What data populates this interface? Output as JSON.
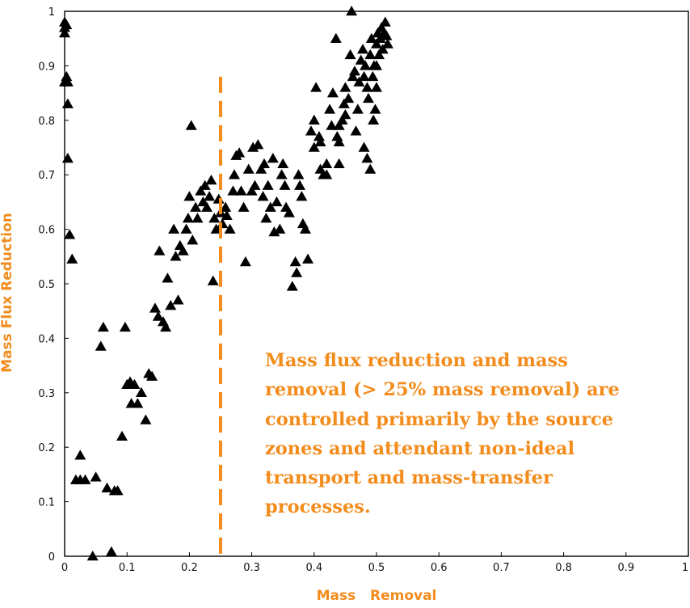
{
  "chart_data": {
    "type": "scatter",
    "title": "",
    "xlabel": "Mass   Removal",
    "ylabel": "Mass Flux Reduction",
    "xlim": [
      0,
      1
    ],
    "ylim": [
      0,
      1
    ],
    "xticks": [
      "0",
      "0.1",
      "0.2",
      "0.3",
      "0.4",
      "0.5",
      "0.6",
      "0.7",
      "0.8",
      "0.9",
      "1"
    ],
    "yticks": [
      "0",
      "0.1",
      "0.2",
      "0.3",
      "0.4",
      "0.5",
      "0.6",
      "0.7",
      "0.8",
      "0.9",
      "1"
    ],
    "grid": false,
    "marker": "triangle",
    "marker_color": "#000000",
    "threshold_line": {
      "x": 0.25,
      "y_range": [
        0,
        0.88
      ],
      "style": "dashed",
      "color": "#f28c1c"
    },
    "annotation": {
      "color": "#f28c1c",
      "lines": [
        "Mass flux reduction and mass",
        "removal (> 25% mass removal) are",
        "controlled primarily by the source",
        "zones and attendant non-ideal",
        "transport and mass-transfer",
        "processes."
      ]
    },
    "series": [
      {
        "points": [
          [
            0.0,
            0.98
          ],
          [
            0.0,
            0.97
          ],
          [
            0.0,
            0.96
          ],
          [
            0.003,
            0.975
          ],
          [
            0.003,
            0.88
          ],
          [
            0.0,
            0.87
          ],
          [
            0.005,
            0.87
          ],
          [
            0.005,
            0.83
          ],
          [
            0.005,
            0.73
          ],
          [
            0.008,
            0.59
          ],
          [
            0.012,
            0.545
          ],
          [
            0.045,
            0.0
          ],
          [
            0.075,
            0.008
          ],
          [
            0.018,
            0.14
          ],
          [
            0.025,
            0.14
          ],
          [
            0.033,
            0.14
          ],
          [
            0.025,
            0.185
          ],
          [
            0.05,
            0.145
          ],
          [
            0.068,
            0.125
          ],
          [
            0.08,
            0.12
          ],
          [
            0.085,
            0.12
          ],
          [
            0.058,
            0.385
          ],
          [
            0.062,
            0.42
          ],
          [
            0.092,
            0.22
          ],
          [
            0.097,
            0.42
          ],
          [
            0.1,
            0.315
          ],
          [
            0.105,
            0.32
          ],
          [
            0.107,
            0.28
          ],
          [
            0.112,
            0.315
          ],
          [
            0.117,
            0.28
          ],
          [
            0.123,
            0.3
          ],
          [
            0.13,
            0.25
          ],
          [
            0.135,
            0.335
          ],
          [
            0.14,
            0.33
          ],
          [
            0.145,
            0.455
          ],
          [
            0.15,
            0.44
          ],
          [
            0.152,
            0.56
          ],
          [
            0.158,
            0.43
          ],
          [
            0.162,
            0.42
          ],
          [
            0.165,
            0.51
          ],
          [
            0.17,
            0.46
          ],
          [
            0.175,
            0.6
          ],
          [
            0.178,
            0.55
          ],
          [
            0.182,
            0.47
          ],
          [
            0.185,
            0.57
          ],
          [
            0.19,
            0.56
          ],
          [
            0.195,
            0.6
          ],
          [
            0.198,
            0.62
          ],
          [
            0.2,
            0.66
          ],
          [
            0.203,
            0.79
          ],
          [
            0.205,
            0.58
          ],
          [
            0.21,
            0.64
          ],
          [
            0.213,
            0.62
          ],
          [
            0.218,
            0.67
          ],
          [
            0.222,
            0.65
          ],
          [
            0.225,
            0.68
          ],
          [
            0.228,
            0.64
          ],
          [
            0.232,
            0.66
          ],
          [
            0.235,
            0.69
          ],
          [
            0.238,
            0.505
          ],
          [
            0.24,
            0.62
          ],
          [
            0.243,
            0.6
          ],
          [
            0.247,
            0.655
          ],
          [
            0.25,
            0.63
          ],
          [
            0.253,
            0.61
          ],
          [
            0.258,
            0.64
          ],
          [
            0.26,
            0.625
          ],
          [
            0.265,
            0.6
          ],
          [
            0.27,
            0.67
          ],
          [
            0.272,
            0.7
          ],
          [
            0.275,
            0.735
          ],
          [
            0.28,
            0.74
          ],
          [
            0.283,
            0.67
          ],
          [
            0.287,
            0.64
          ],
          [
            0.29,
            0.54
          ],
          [
            0.295,
            0.71
          ],
          [
            0.3,
            0.67
          ],
          [
            0.302,
            0.75
          ],
          [
            0.305,
            0.68
          ],
          [
            0.31,
            0.755
          ],
          [
            0.315,
            0.71
          ],
          [
            0.318,
            0.66
          ],
          [
            0.32,
            0.72
          ],
          [
            0.323,
            0.62
          ],
          [
            0.326,
            0.68
          ],
          [
            0.33,
            0.64
          ],
          [
            0.334,
            0.73
          ],
          [
            0.336,
            0.595
          ],
          [
            0.34,
            0.65
          ],
          [
            0.345,
            0.6
          ],
          [
            0.348,
            0.7
          ],
          [
            0.35,
            0.72
          ],
          [
            0.353,
            0.68
          ],
          [
            0.355,
            0.64
          ],
          [
            0.36,
            0.63
          ],
          [
            0.365,
            0.495
          ],
          [
            0.37,
            0.54
          ],
          [
            0.372,
            0.52
          ],
          [
            0.375,
            0.7
          ],
          [
            0.377,
            0.68
          ],
          [
            0.38,
            0.66
          ],
          [
            0.382,
            0.61
          ],
          [
            0.386,
            0.6
          ],
          [
            0.39,
            0.545
          ],
          [
            0.395,
            0.78
          ],
          [
            0.4,
            0.8
          ],
          [
            0.403,
            0.86
          ],
          [
            0.408,
            0.77
          ],
          [
            0.41,
            0.71
          ],
          [
            0.415,
            0.7
          ],
          [
            0.42,
            0.72
          ],
          [
            0.425,
            0.82
          ],
          [
            0.428,
            0.79
          ],
          [
            0.43,
            0.85
          ],
          [
            0.435,
            0.95
          ],
          [
            0.437,
            0.77
          ],
          [
            0.44,
            0.76
          ],
          [
            0.445,
            0.8
          ],
          [
            0.448,
            0.83
          ],
          [
            0.45,
            0.86
          ],
          [
            0.455,
            0.84
          ],
          [
            0.458,
            0.92
          ],
          [
            0.46,
            1.0
          ],
          [
            0.462,
            0.88
          ],
          [
            0.465,
            0.89
          ],
          [
            0.467,
            0.78
          ],
          [
            0.47,
            0.82
          ],
          [
            0.472,
            0.87
          ],
          [
            0.475,
            0.91
          ],
          [
            0.478,
            0.93
          ],
          [
            0.48,
            0.88
          ],
          [
            0.482,
            0.9
          ],
          [
            0.485,
            0.86
          ],
          [
            0.487,
            0.84
          ],
          [
            0.49,
            0.92
          ],
          [
            0.492,
            0.95
          ],
          [
            0.494,
            0.88
          ],
          [
            0.496,
            0.9
          ],
          [
            0.498,
            0.82
          ],
          [
            0.5,
            0.94
          ],
          [
            0.502,
            0.96
          ],
          [
            0.504,
            0.92
          ],
          [
            0.506,
            0.95
          ],
          [
            0.508,
            0.97
          ],
          [
            0.51,
            0.93
          ],
          [
            0.512,
            0.96
          ],
          [
            0.514,
            0.98
          ],
          [
            0.516,
            0.955
          ],
          [
            0.518,
            0.94
          ],
          [
            0.485,
            0.73
          ],
          [
            0.49,
            0.71
          ],
          [
            0.495,
            0.8
          ],
          [
            0.48,
            0.75
          ],
          [
            0.42,
            0.7
          ],
          [
            0.44,
            0.72
          ],
          [
            0.44,
            0.79
          ],
          [
            0.45,
            0.81
          ],
          [
            0.5,
            0.86
          ],
          [
            0.5,
            0.9
          ],
          [
            0.4,
            0.75
          ],
          [
            0.41,
            0.76
          ]
        ]
      }
    ]
  }
}
